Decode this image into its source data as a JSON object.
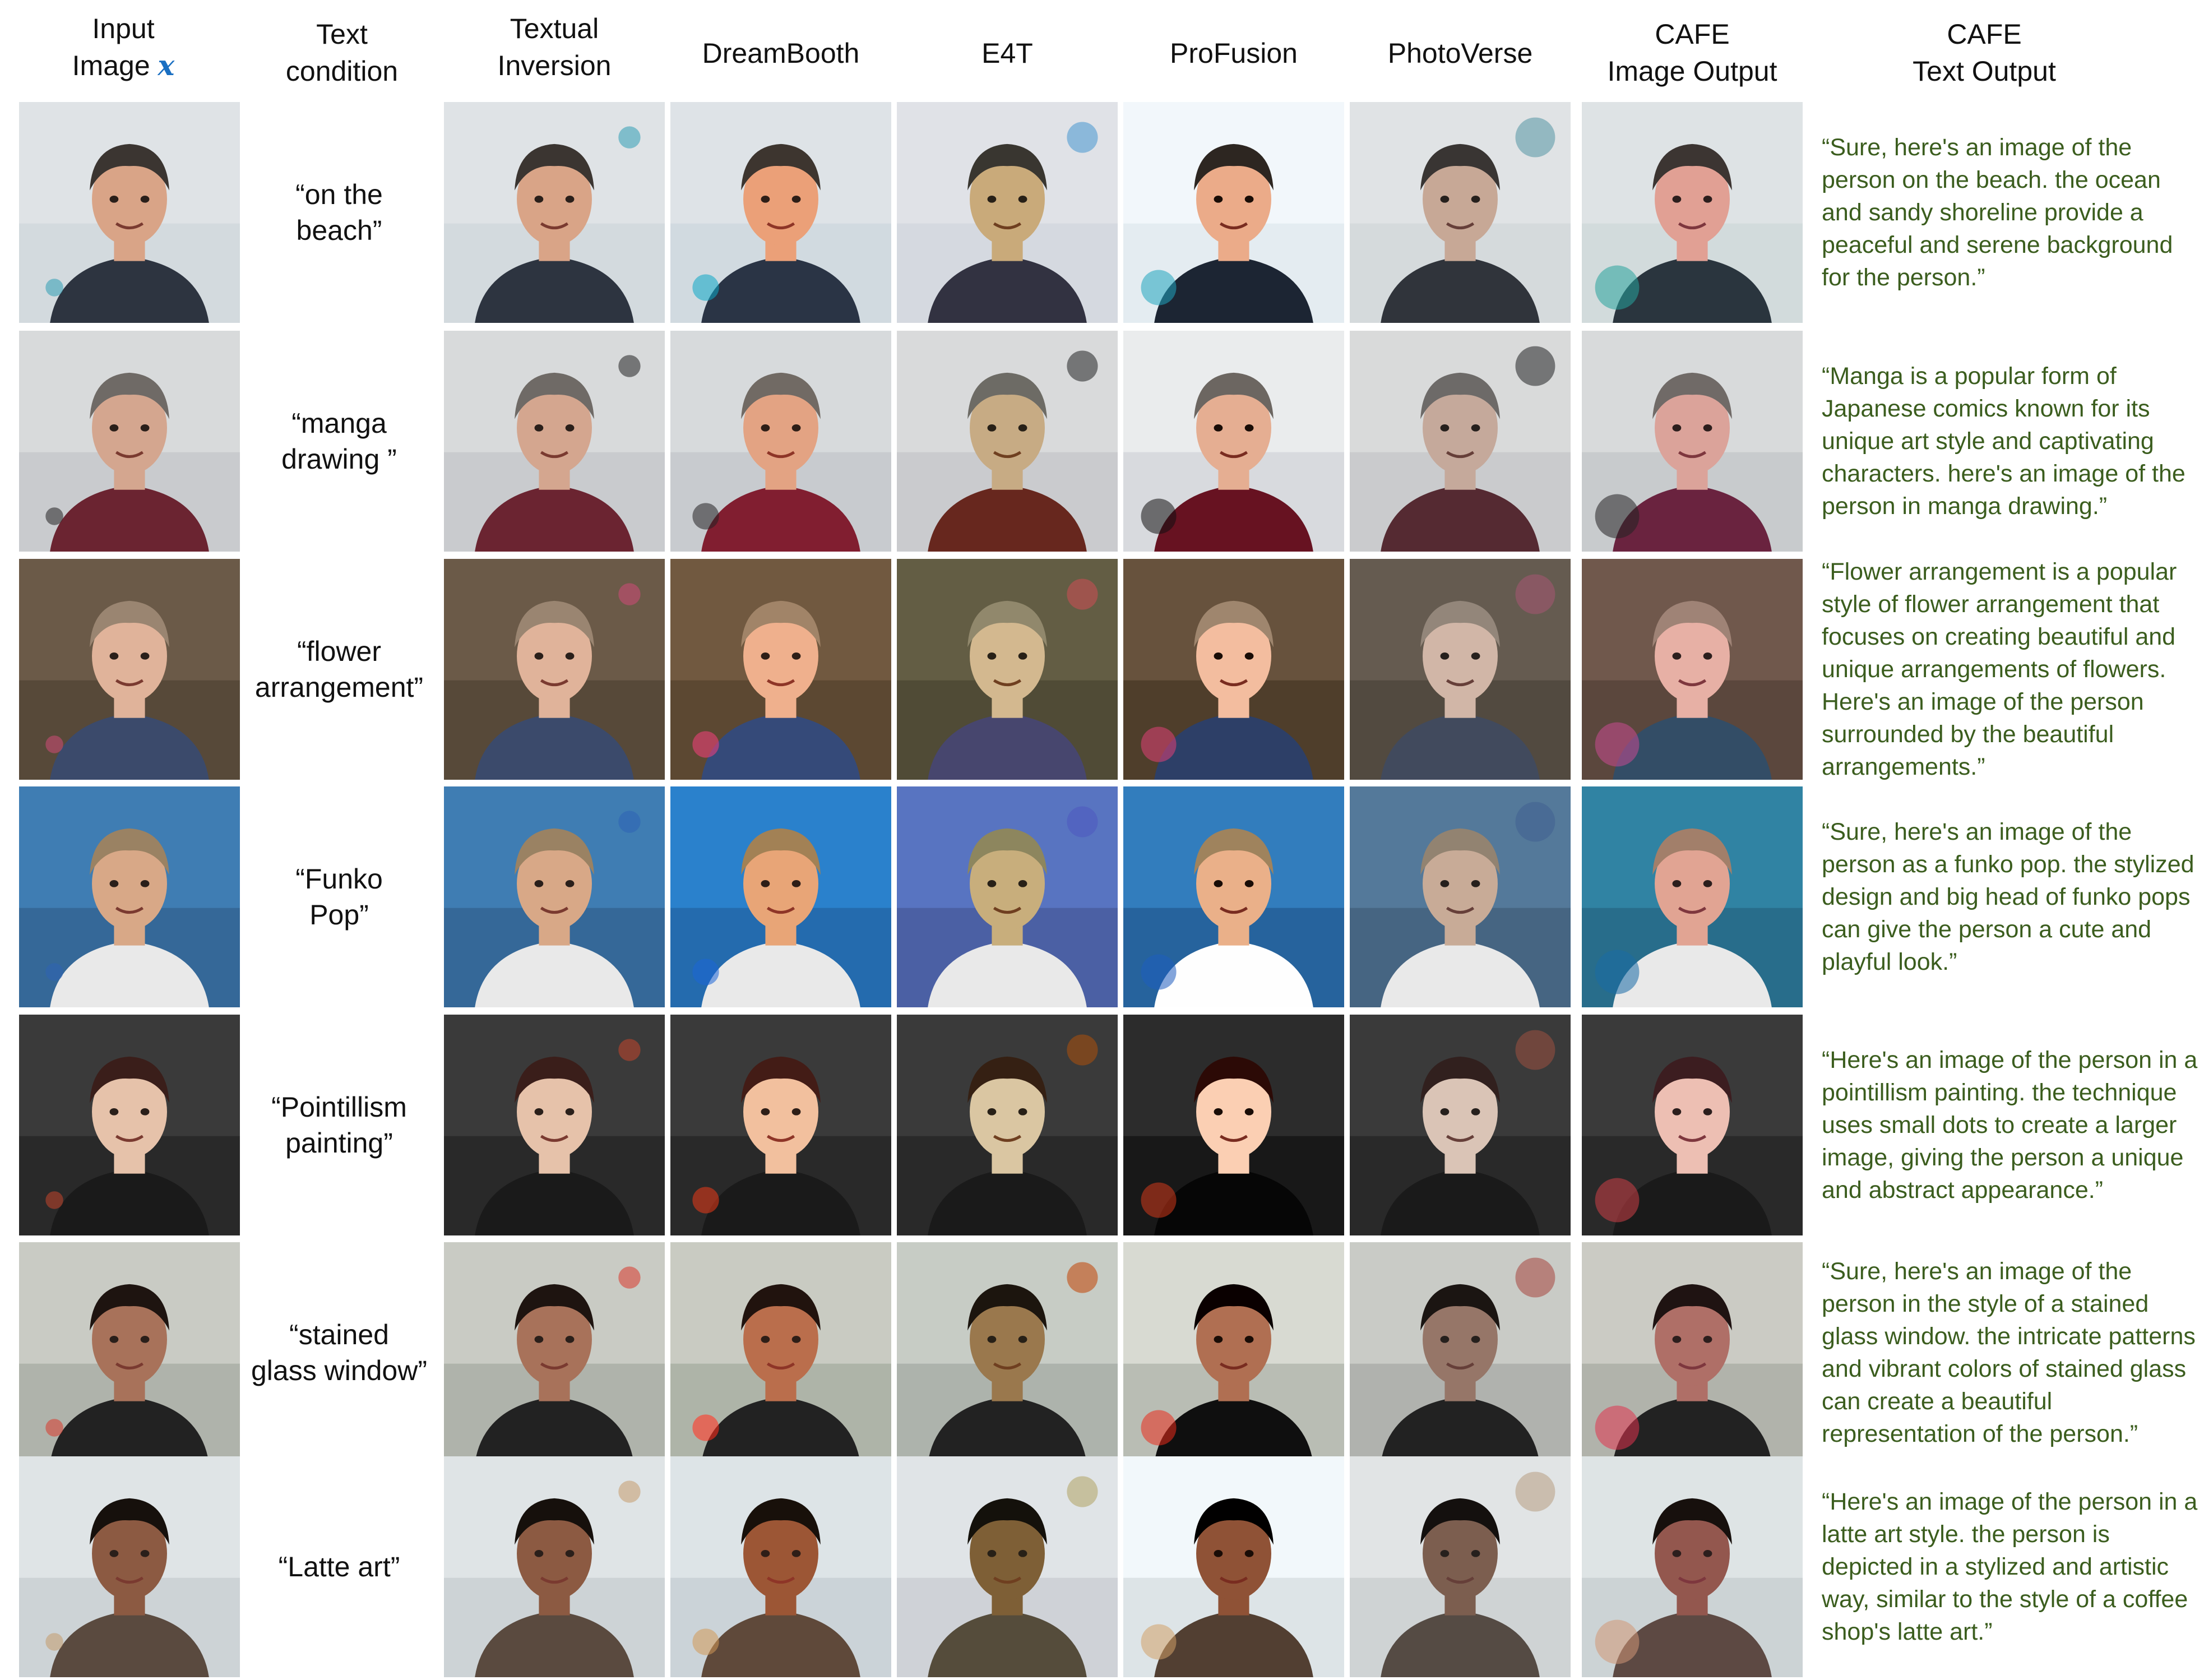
{
  "headers": {
    "input": "Input\nImage",
    "input_var": "x",
    "text_condition": "Text\ncondition",
    "textual_inversion": "Textual\nInversion",
    "dreambooth": "DreamBooth",
    "e4t": "E4T",
    "profusion": "ProFusion",
    "photoverse": "PhotoVerse",
    "cafe_image": "CAFE\nImage Output",
    "cafe_text": "CAFE\nText Output"
  },
  "rows": [
    {
      "condition": "“on the\nbeach”",
      "text_output": "“Sure, here's an image of the person on the beach. the ocean and sandy shoreline provide a peaceful and serene background for the person.”"
    },
    {
      "condition": "“manga\ndrawing ”",
      "text_output": "“Manga is a popular form of Japanese comics known for its unique art style and captivating characters. here's an image of the person in manga drawing.”"
    },
    {
      "condition": "“flower\narrangement”",
      "text_output": "“Flower arrangement is a popular style of flower arrangement that focuses on creating beautiful and unique arrangements of flowers. Here's an image of the person surrounded by the beautiful arrangements.”"
    },
    {
      "condition": "“Funko\nPop”",
      "text_output": "“Sure, here's an image of the person as a funko pop. the stylized design and big head of funko pops can give the person a cute and playful look.”"
    },
    {
      "condition": "“Pointillism\npainting”",
      "text_output": "“Here's an image of the person in a pointillism painting. the technique uses small dots to create a larger image, giving the person a unique and abstract appearance.”"
    },
    {
      "condition": "“stained\nglass window”",
      "text_output": "“Sure, here's an image of the person in the style of a stained glass window. the intricate patterns and vibrant colors of stained glass can create a beautiful representation of the person.”"
    },
    {
      "condition": "“Latte art”",
      "text_output": "“Here's an image of the person in a latte art style. the person is depicted in a stylized and artistic way, similar to the style of a coffee shop's latte art.”"
    }
  ],
  "palettes": [
    {
      "bg": "#dfe3e6",
      "bg2": "#cbd3d8",
      "skin": "#d9a487",
      "hair": "#3b3531",
      "shirt": "#2d3440",
      "accent": "#2f9fb5"
    },
    {
      "bg": "#d8dadb",
      "bg2": "#bfc2c4",
      "skin": "#d4a68f",
      "hair": "#6f6a66",
      "shirt": "#6b2431",
      "accent": "#222222"
    },
    {
      "bg": "#6b5a48",
      "bg2": "#4a3d31",
      "skin": "#e0b39a",
      "hair": "#9a8571",
      "shirt": "#3b4a6b",
      "accent": "#d04a78"
    },
    {
      "bg": "#3f7db3",
      "bg2": "#2f5a86",
      "skin": "#d8a887",
      "hair": "#9a8263",
      "shirt": "#e9e9e9",
      "accent": "#2e62b5"
    },
    {
      "bg": "#3a3a3a",
      "bg2": "#1e1e1e",
      "skin": "#e6c2aa",
      "hair": "#3a1e1a",
      "shirt": "#1a1a1a",
      "accent": "#c4462b"
    },
    {
      "bg": "#c9cbc4",
      "bg2": "#9ea39b",
      "skin": "#a8725a",
      "hair": "#1e1410",
      "shirt": "#222222",
      "accent": "#d8382b"
    },
    {
      "bg": "#dfe4e6",
      "bg2": "#c1c8cc",
      "skin": "#8c5a42",
      "hair": "#16100c",
      "shirt": "#5a4a3f",
      "accent": "#c49a6c"
    }
  ]
}
